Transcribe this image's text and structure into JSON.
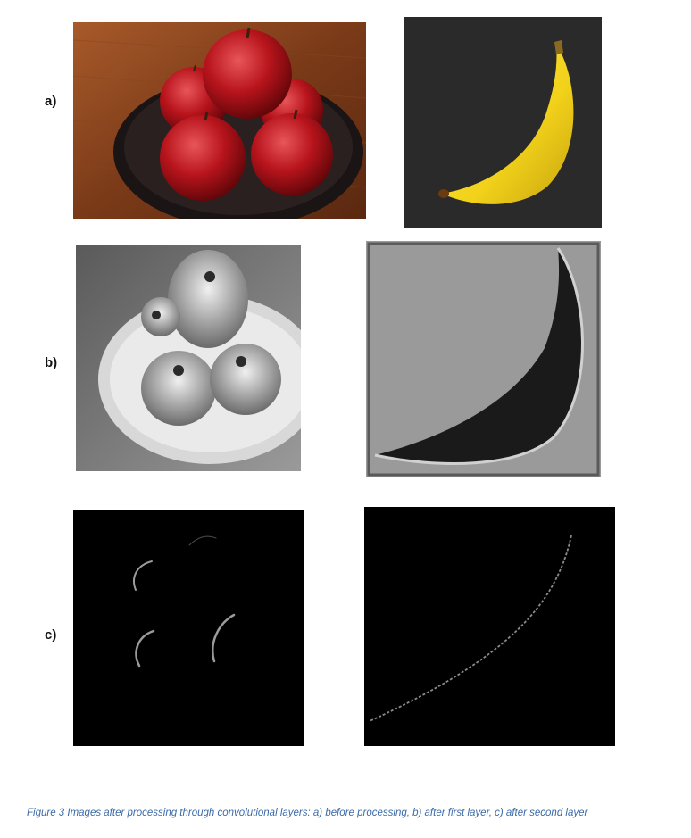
{
  "rows": [
    {
      "label": "a)"
    },
    {
      "label": "b)"
    },
    {
      "label": "c)"
    }
  ],
  "panels": {
    "apples_original": "apples-bowl-photo",
    "banana_original": "banana-photo",
    "apples_layer1": "apples-feature-map-layer-1",
    "banana_layer1": "banana-feature-map-layer-1",
    "apples_layer2": "apples-feature-map-layer-2",
    "banana_layer2": "banana-feature-map-layer-2"
  },
  "colors": {
    "caption": "#3b6aa8",
    "apple_red": "#b8141c",
    "banana_yellow": "#f2d21a",
    "banana_bg": "#2a2a2a"
  },
  "caption": "Figure 3 Images after processing through convolutional layers: a) before processing, b) after first layer, c) after second layer"
}
